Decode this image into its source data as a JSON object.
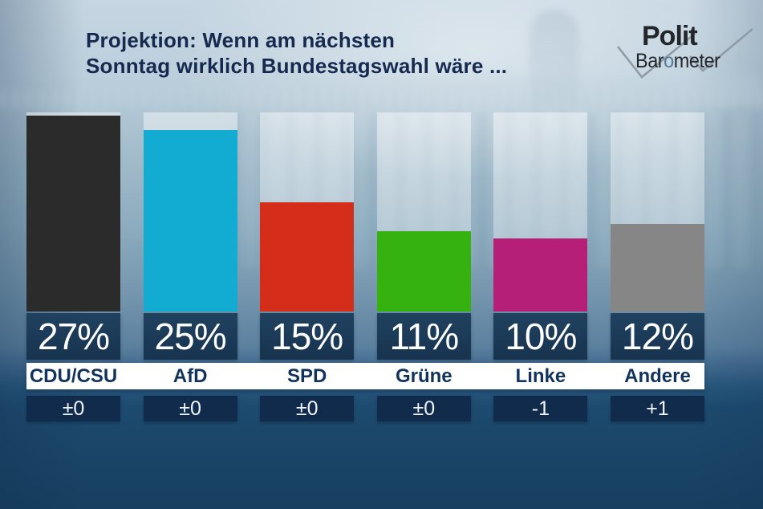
{
  "title": {
    "line1": "Projektion: Wenn am nächsten",
    "line2": "Sonntag wirklich Bundestagswahl wäre ..."
  },
  "logo": {
    "word1": "Polit",
    "word2_prefix": "Bar",
    "word2_accent": "o",
    "word2_suffix": "meter",
    "checkmark_color": "#8f9ba6",
    "accent_color": "#567b9b"
  },
  "chart_data": {
    "type": "bar",
    "title": "Projektion: Wenn am nächsten Sonntag wirklich Bundestagswahl wäre ...",
    "unit": "percent of vote",
    "ylim": [
      0,
      27
    ],
    "grid": false,
    "legend": "none",
    "categories": [
      "CDU/CSU",
      "AfD",
      "SPD",
      "Grüne",
      "Linke",
      "Andere"
    ],
    "values": [
      27,
      25,
      15,
      11,
      10,
      12
    ],
    "changes": [
      "±0",
      "±0",
      "±0",
      "±0",
      "-1",
      "+1"
    ],
    "parties": [
      {
        "name": "CDU/CSU",
        "value": 27,
        "value_label": "27%",
        "change": "±0",
        "color": "#2b2b2b"
      },
      {
        "name": "AfD",
        "value": 25,
        "value_label": "25%",
        "change": "±0",
        "color": "#12abd1"
      },
      {
        "name": "SPD",
        "value": 15,
        "value_label": "15%",
        "change": "±0",
        "color": "#d42e1a"
      },
      {
        "name": "Grüne",
        "value": 11,
        "value_label": "11%",
        "change": "±0",
        "color": "#35b20f"
      },
      {
        "name": "Linke",
        "value": 10,
        "value_label": "10%",
        "change": "-1",
        "color": "#b51f77"
      },
      {
        "name": "Andere",
        "value": 12,
        "value_label": "12%",
        "change": "+1",
        "color": "#868686"
      }
    ]
  },
  "colors": {
    "title_text": "#16294e",
    "value_box": "#1b3a5c",
    "change_box": "#112b4c",
    "label_strip": "#ffffff",
    "label_text": "#11335c",
    "background_top": "#c6d6e2",
    "background_bottom": "#173f60"
  }
}
